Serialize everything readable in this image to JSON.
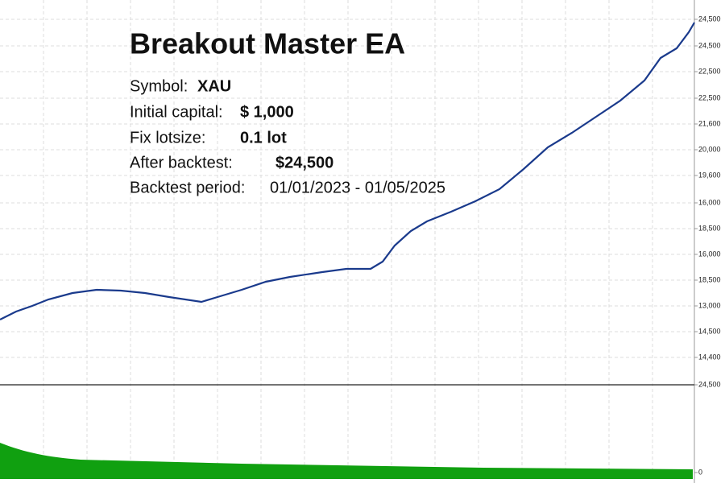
{
  "title": "Breakout Master EA",
  "info": [
    {
      "label": "Symbol:",
      "value": "XAU"
    },
    {
      "label": "Initial capital:",
      "value": "$ 1,000"
    },
    {
      "label": "Fix lotsize:",
      "value": "0.1 lot"
    },
    {
      "label": "After backtest:",
      "value": "$24,500"
    },
    {
      "label": "Backtest period:",
      "value": "01/01/2023 - 01/05/2025"
    }
  ],
  "axis_labels": [
    "24,500",
    "24,500",
    "22,500",
    "22,500",
    "21,600",
    "20,000",
    "19,600",
    "16,000",
    "18,500",
    "16,000",
    "18,500",
    "13,000",
    "14,500",
    "14,400",
    "24,500",
    "0"
  ]
}
